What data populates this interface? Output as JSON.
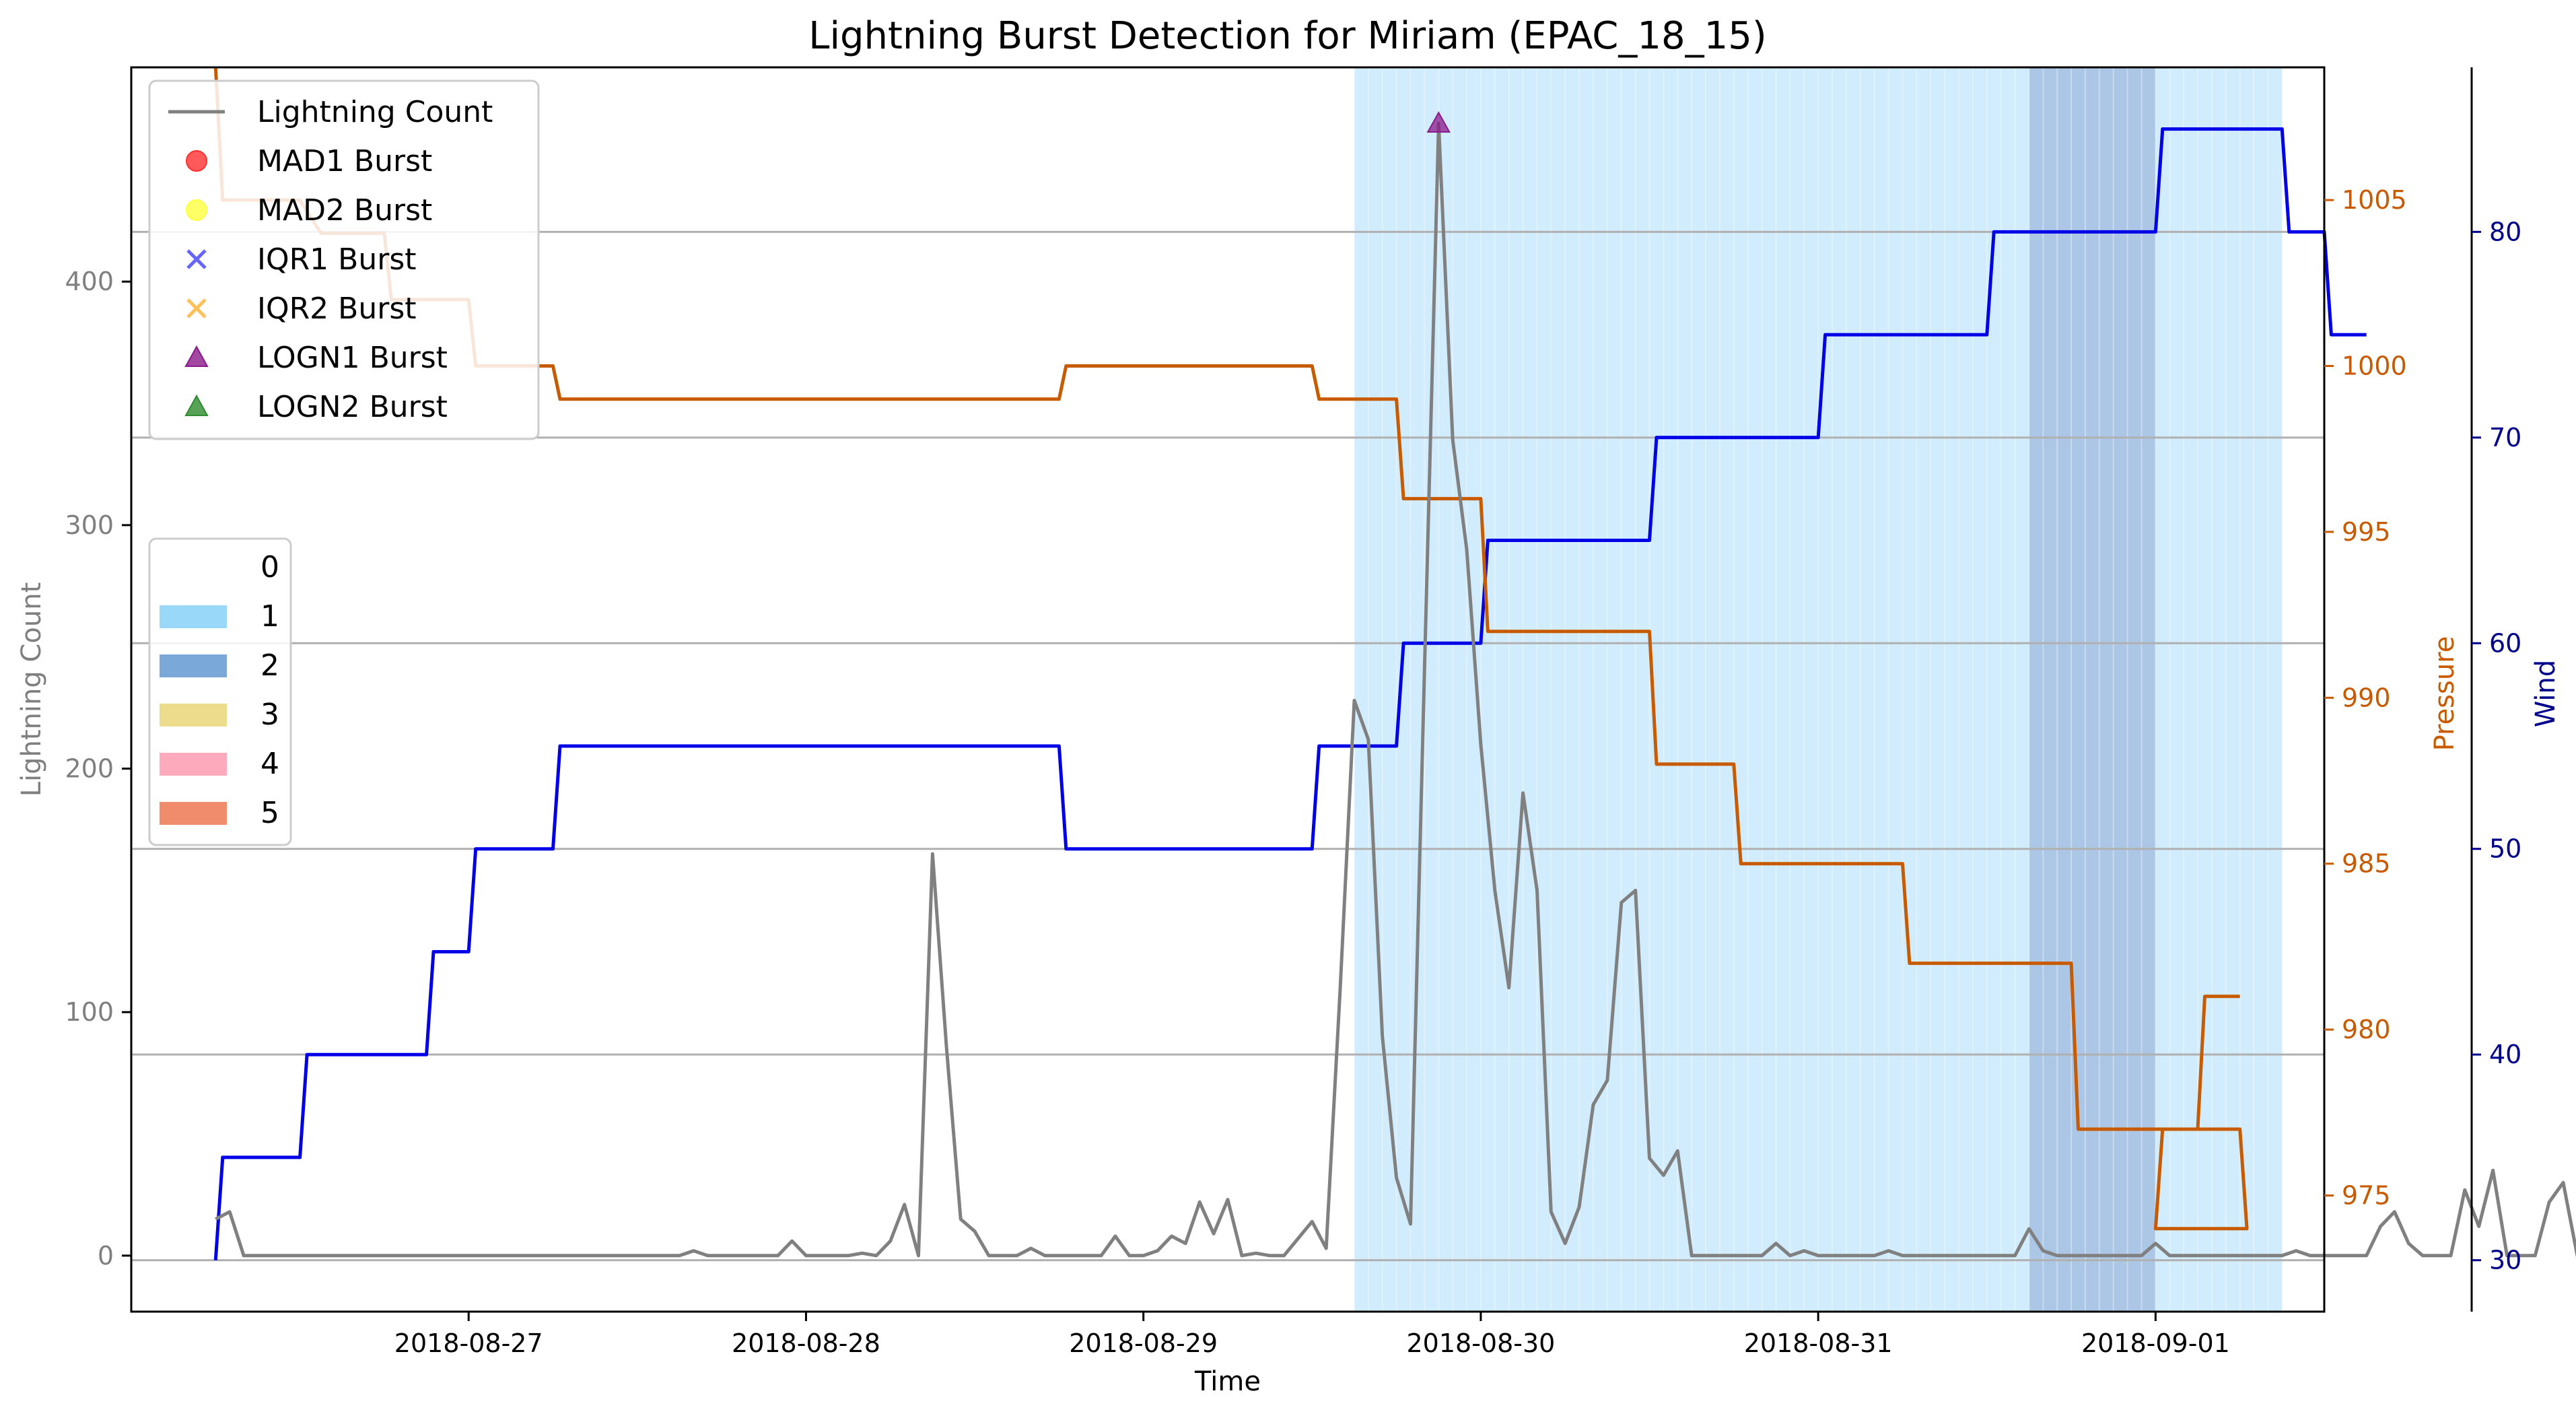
{
  "chart_data": {
    "type": "line",
    "title": "Lightning Burst Detection for Miriam (EPAC_18_15)",
    "xlabel": "Time",
    "ylabel": "Lightning Count",
    "ylabel_pressure": "Pressure",
    "ylabel_wind": "Wind",
    "xlim": [
      "2018-08-26 00:00",
      "2018-09-01 12:00"
    ],
    "ylim": [
      -23,
      488
    ],
    "ylim_pressure": [
      971.5,
      1009.0
    ],
    "ylim_wind": [
      27.5,
      88.0
    ],
    "x_ticks": [
      "2018-08-27",
      "2018-08-28",
      "2018-08-29",
      "2018-08-30",
      "2018-08-31",
      "2018-09-01"
    ],
    "y_ticks": [
      0,
      100,
      200,
      300,
      400
    ],
    "pressure_ticks": [
      975,
      980,
      985,
      990,
      995,
      1000,
      1005
    ],
    "wind_ticks": [
      30,
      40,
      50,
      60,
      70,
      80
    ],
    "grid": "horizontal lines at wind ticks",
    "colors": {
      "lightning": "#808080",
      "pressure": "#c85a00",
      "wind": "#0000e8",
      "axis_pressure": "#c85a00",
      "axis_wind": "#00008b",
      "axis_count": "#7f7f7f",
      "category_1": "#87cefa",
      "category_2": "#4682c8"
    },
    "legend_bursts": {
      "placement": "top-left",
      "entries": [
        {
          "label": "Lightning Count",
          "marker": "line",
          "color": "#808080"
        },
        {
          "label": "MAD1 Burst",
          "marker": "circle",
          "color": "#ff3030"
        },
        {
          "label": "MAD2 Burst",
          "marker": "circle",
          "color": "#ffff40"
        },
        {
          "label": "IQR1 Burst",
          "marker": "x",
          "color": "#4040ff"
        },
        {
          "label": "IQR2 Burst",
          "marker": "x",
          "color": "#ffb030"
        },
        {
          "label": "LOGN1 Burst",
          "marker": "triangle",
          "color": "#8b1a8b"
        },
        {
          "label": "LOGN2 Burst",
          "marker": "triangle",
          "color": "#2e8b2e"
        }
      ]
    },
    "legend_categories": {
      "placement": "center-left",
      "entries": [
        {
          "label": "0",
          "color": "#ffffff"
        },
        {
          "label": "1",
          "color": "#99d8f8"
        },
        {
          "label": "2",
          "color": "#7aa8d8"
        },
        {
          "label": "3",
          "color": "#ecdc8c"
        },
        {
          "label": "4",
          "color": "#fcaabc"
        },
        {
          "label": "5",
          "color": "#f08c6c"
        }
      ]
    },
    "category_spans": [
      {
        "category": 1,
        "start": "2018-08-29 15:00",
        "end": "2018-08-31 15:00"
      },
      {
        "category": 2,
        "start": "2018-08-31 15:00",
        "end": "2018-09-01 00:00"
      },
      {
        "category": 1,
        "start": "2018-09-01 00:00",
        "end": "2018-09-01 09:00"
      }
    ],
    "lightning_series": {
      "name": "Lightning Count",
      "points": [
        [
          "2018-08-26 06:00",
          15
        ],
        [
          "2018-08-26 07:00",
          18
        ],
        [
          "2018-08-26 08:00",
          0
        ],
        [
          "2018-08-27 15:00",
          0
        ],
        [
          "2018-08-27 16:00",
          2
        ],
        [
          "2018-08-27 17:00",
          0
        ],
        [
          "2018-08-27 22:00",
          0
        ],
        [
          "2018-08-27 23:00",
          6
        ],
        [
          "2018-08-28 00:00",
          0
        ],
        [
          "2018-08-28 03:00",
          0
        ],
        [
          "2018-08-28 04:00",
          1
        ],
        [
          "2018-08-28 05:00",
          0
        ],
        [
          "2018-08-28 06:00",
          6
        ],
        [
          "2018-08-28 07:00",
          21
        ],
        [
          "2018-08-28 08:00",
          0
        ],
        [
          "2018-08-28 09:00",
          165
        ],
        [
          "2018-08-28 10:00",
          85
        ],
        [
          "2018-08-28 11:00",
          15
        ],
        [
          "2018-08-28 12:00",
          10
        ],
        [
          "2018-08-28 13:00",
          0
        ],
        [
          "2018-08-28 15:00",
          0
        ],
        [
          "2018-08-28 16:00",
          3
        ],
        [
          "2018-08-28 17:00",
          0
        ],
        [
          "2018-08-28 19:00",
          0
        ],
        [
          "2018-08-28 20:00",
          0
        ],
        [
          "2018-08-28 21:00",
          0
        ],
        [
          "2018-08-28 22:00",
          8
        ],
        [
          "2018-08-28 23:00",
          0
        ],
        [
          "2018-08-29 00:00",
          0
        ],
        [
          "2018-08-29 01:00",
          2
        ],
        [
          "2018-08-29 02:00",
          8
        ],
        [
          "2018-08-29 03:00",
          5
        ],
        [
          "2018-08-29 04:00",
          22
        ],
        [
          "2018-08-29 05:00",
          9
        ],
        [
          "2018-08-29 06:00",
          23
        ],
        [
          "2018-08-29 07:00",
          0
        ],
        [
          "2018-08-29 08:00",
          1
        ],
        [
          "2018-08-29 09:00",
          0
        ],
        [
          "2018-08-29 10:00",
          0
        ],
        [
          "2018-08-29 11:00",
          7
        ],
        [
          "2018-08-29 12:00",
          14
        ],
        [
          "2018-08-29 13:00",
          3
        ],
        [
          "2018-08-29 14:00",
          110
        ],
        [
          "2018-08-29 15:00",
          228
        ],
        [
          "2018-08-29 16:00",
          212
        ],
        [
          "2018-08-29 17:00",
          90
        ],
        [
          "2018-08-29 18:00",
          32
        ],
        [
          "2018-08-29 19:00",
          13
        ],
        [
          "2018-08-29 20:00",
          242
        ],
        [
          "2018-08-29 21:00",
          465
        ],
        [
          "2018-08-29 22:00",
          335
        ],
        [
          "2018-08-29 23:00",
          290
        ],
        [
          "2018-08-30 00:00",
          210
        ],
        [
          "2018-08-30 01:00",
          150
        ],
        [
          "2018-08-30 02:00",
          110
        ],
        [
          "2018-08-30 03:00",
          190
        ],
        [
          "2018-08-30 04:00",
          150
        ],
        [
          "2018-08-30 05:00",
          18
        ],
        [
          "2018-08-30 06:00",
          5
        ],
        [
          "2018-08-30 07:00",
          20
        ],
        [
          "2018-08-30 08:00",
          62
        ],
        [
          "2018-08-30 09:00",
          72
        ],
        [
          "2018-08-30 10:00",
          145
        ],
        [
          "2018-08-30 11:00",
          150
        ],
        [
          "2018-08-30 12:00",
          40
        ],
        [
          "2018-08-30 13:00",
          33
        ],
        [
          "2018-08-30 14:00",
          43
        ],
        [
          "2018-08-30 15:00",
          0
        ],
        [
          "2018-08-30 20:00",
          0
        ],
        [
          "2018-08-30 21:00",
          5
        ],
        [
          "2018-08-30 22:00",
          0
        ],
        [
          "2018-08-30 23:00",
          2
        ],
        [
          "2018-08-31 00:00",
          0
        ],
        [
          "2018-08-31 04:00",
          0
        ],
        [
          "2018-08-31 05:00",
          2
        ],
        [
          "2018-08-31 06:00",
          0
        ],
        [
          "2018-08-31 14:00",
          0
        ],
        [
          "2018-08-31 15:00",
          11
        ],
        [
          "2018-08-31 16:00",
          2
        ],
        [
          "2018-08-31 17:00",
          0
        ],
        [
          "2018-08-31 23:00",
          0
        ],
        [
          "2018-09-01 00:00",
          5
        ],
        [
          "2018-09-01 01:00",
          0
        ],
        [
          "2018-09-01 09:00",
          0
        ],
        [
          "2018-09-01 10:00",
          2
        ],
        [
          "2018-09-01 11:00",
          0
        ],
        [
          "2018-09-01 15:00",
          0
        ],
        [
          "2018-09-01 16:00",
          12
        ],
        [
          "2018-09-01 17:00",
          18
        ],
        [
          "2018-09-01 18:00",
          5
        ],
        [
          "2018-09-01 19:00",
          0
        ],
        [
          "2018-09-01 21:00",
          0
        ],
        [
          "2018-09-01 22:00",
          27
        ],
        [
          "2018-09-01 23:00",
          12
        ],
        [
          "2018-09-02 00:00",
          35
        ],
        [
          "2018-09-02 01:00",
          0
        ],
        [
          "2018-09-02 03:00",
          0
        ],
        [
          "2018-09-02 04:00",
          22
        ],
        [
          "2018-09-02 05:00",
          30
        ],
        [
          "2018-09-02 06:00",
          0
        ],
        [
          "2018-09-02 07:00",
          55
        ],
        [
          "2018-09-02 08:00",
          13
        ],
        [
          "2018-09-02 09:00",
          4
        ],
        [
          "2018-09-02 10:00",
          1
        ],
        [
          "2018-09-02 11:00",
          0
        ],
        [
          "2018-09-02 12:00",
          15
        ],
        [
          "2018-09-02 13:00",
          5
        ],
        [
          "2018-09-02 14:00",
          4
        ],
        [
          "2018-09-02 15:00",
          0
        ],
        [
          "2018-09-02 16:00",
          2
        ],
        [
          "2018-09-02 17:00",
          73
        ],
        [
          "2018-09-02 18:00",
          62
        ],
        [
          "2018-09-02 19:00",
          25
        ],
        [
          "2018-09-02 20:00",
          44
        ],
        [
          "2018-09-02 21:00",
          20
        ],
        [
          "2018-09-02 22:00",
          55
        ],
        [
          "2018-09-02 23:00",
          74
        ],
        [
          "2018-09-03 00:00",
          20
        ],
        [
          "2018-09-03 01:00",
          0
        ],
        [
          "2018-09-03 04:00",
          0
        ],
        [
          "2018-09-03 05:00",
          2
        ],
        [
          "2018-09-03 06:00",
          0
        ],
        [
          "2018-09-03 07:00",
          25
        ],
        [
          "2018-09-03 08:00",
          6
        ],
        [
          "2018-09-03 09:00",
          0
        ],
        [
          "2018-09-03 10:00",
          0
        ]
      ]
    },
    "pressure_series": {
      "name": "Pressure",
      "points": [
        [
          "2018-08-26 06:00",
          1009
        ],
        [
          "2018-08-26 06:30",
          1005
        ],
        [
          "2018-08-26 12:00",
          1005
        ],
        [
          "2018-08-26 13:30",
          1004
        ],
        [
          "2018-08-26 18:00",
          1004
        ],
        [
          "2018-08-26 18:30",
          1002
        ],
        [
          "2018-08-27 00:00",
          1002
        ],
        [
          "2018-08-27 00:30",
          1000
        ],
        [
          "2018-08-27 06:00",
          1000
        ],
        [
          "2018-08-27 06:30",
          999
        ],
        [
          "2018-08-28 18:00",
          999
        ],
        [
          "2018-08-28 18:30",
          1000
        ],
        [
          "2018-08-29 12:00",
          1000
        ],
        [
          "2018-08-29 12:30",
          999
        ],
        [
          "2018-08-29 18:00",
          999
        ],
        [
          "2018-08-29 18:30",
          996
        ],
        [
          "2018-08-30 00:00",
          996
        ],
        [
          "2018-08-30 00:30",
          992
        ],
        [
          "2018-08-30 12:00",
          992
        ],
        [
          "2018-08-30 12:30",
          988
        ],
        [
          "2018-08-30 18:00",
          988
        ],
        [
          "2018-08-30 18:30",
          985
        ],
        [
          "2018-08-31 06:00",
          985
        ],
        [
          "2018-08-31 06:30",
          982
        ],
        [
          "2018-08-31 18:00",
          982
        ],
        [
          "2018-08-31 18:30",
          977
        ],
        [
          "2018-09-01 06:00",
          977
        ],
        [
          "2018-09-01 06:30",
          974
        ],
        [
          "2018-09-01 00:00",
          974
        ],
        [
          "2018-09-01 00:30",
          977
        ],
        [
          "2018-09-01 03:00",
          977
        ],
        [
          "2018-09-01 03:30",
          981
        ],
        [
          "2018-09-01 06:00",
          981
        ]
      ]
    },
    "wind_series": {
      "name": "Wind",
      "points": [
        [
          "2018-08-26 06:00",
          30
        ],
        [
          "2018-08-26 06:30",
          35
        ],
        [
          "2018-08-26 12:00",
          35
        ],
        [
          "2018-08-26 12:30",
          40
        ],
        [
          "2018-08-26 21:00",
          40
        ],
        [
          "2018-08-26 21:30",
          45
        ],
        [
          "2018-08-27 00:00",
          45
        ],
        [
          "2018-08-27 00:30",
          50
        ],
        [
          "2018-08-27 06:00",
          50
        ],
        [
          "2018-08-27 06:30",
          55
        ],
        [
          "2018-08-28 18:00",
          55
        ],
        [
          "2018-08-28 18:30",
          50
        ],
        [
          "2018-08-29 12:00",
          50
        ],
        [
          "2018-08-29 12:30",
          55
        ],
        [
          "2018-08-29 18:00",
          55
        ],
        [
          "2018-08-29 18:30",
          60
        ],
        [
          "2018-08-30 00:00",
          60
        ],
        [
          "2018-08-30 00:30",
          65
        ],
        [
          "2018-08-30 12:00",
          65
        ],
        [
          "2018-08-30 12:30",
          70
        ],
        [
          "2018-08-31 00:00",
          70
        ],
        [
          "2018-08-31 00:30",
          75
        ],
        [
          "2018-08-31 12:00",
          75
        ],
        [
          "2018-08-31 12:30",
          80
        ],
        [
          "2018-09-01 00:00",
          80
        ],
        [
          "2018-09-01 00:30",
          85
        ],
        [
          "2018-09-01 09:00",
          85
        ],
        [
          "2018-09-01 09:30",
          80
        ],
        [
          "2018-09-01 12:00",
          80
        ],
        [
          "2018-09-01 12:30",
          75
        ],
        [
          "2018-09-01 15:00",
          75
        ]
      ]
    },
    "burst_markers": [
      {
        "type": "LOGN1 Burst",
        "x": "2018-08-29 21:00",
        "y": 465,
        "color": "#8b1a8b"
      }
    ]
  }
}
